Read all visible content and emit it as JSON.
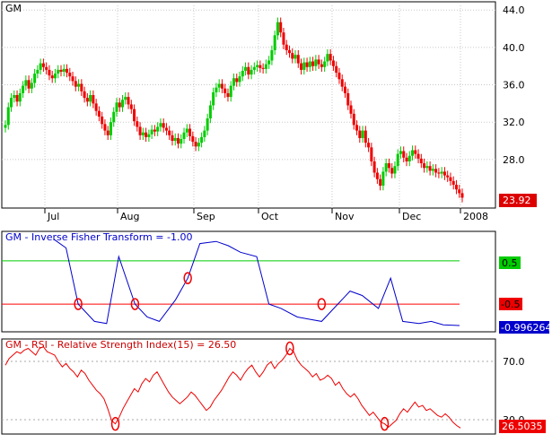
{
  "chart_data": [
    {
      "type": "candlestick",
      "title": "GM",
      "x_labels": [
        "Jul",
        "Aug",
        "Sep",
        "Oct",
        "Nov",
        "Dec",
        "2008"
      ],
      "y_ticks": [
        "44.0",
        "40.0",
        "36.0",
        "32.0",
        "28.0"
      ],
      "ylim": [
        23.0,
        44.5
      ],
      "last_value_label": "23.92",
      "last_value": 23.92,
      "grid": true,
      "close": [
        31.7,
        33.6,
        34.6,
        34.9,
        34.2,
        35.1,
        35.9,
        36.5,
        35.6,
        36.2,
        37.2,
        37.6,
        38.3,
        37.9,
        37.6,
        37.0,
        36.7,
        37.2,
        37.6,
        37.4,
        37.7,
        37.3,
        36.9,
        36.4,
        35.8,
        36.1,
        35.3,
        34.6,
        34.2,
        34.9,
        34.0,
        33.2,
        32.6,
        31.8,
        31.1,
        30.6,
        32.0,
        33.1,
        34.1,
        33.6,
        34.4,
        34.7,
        33.9,
        33.4,
        32.1,
        31.5,
        30.6,
        30.9,
        30.4,
        30.7,
        31.2,
        31.0,
        31.5,
        31.9,
        31.4,
        31.1,
        30.6,
        30.0,
        30.3,
        29.7,
        30.2,
        30.9,
        31.3,
        30.5,
        29.9,
        29.4,
        29.8,
        30.4,
        31.1,
        32.4,
        33.8,
        35.2,
        35.7,
        36.1,
        35.6,
        35.1,
        34.7,
        35.9,
        36.7,
        36.3,
        36.9,
        37.5,
        37.9,
        37.1,
        37.6,
        37.9,
        38.1,
        37.8,
        37.7,
        38.2,
        38.6,
        39.7,
        41.3,
        42.7,
        41.6,
        40.3,
        39.7,
        39.4,
        38.8,
        39.2,
        38.3,
        37.6,
        38.4,
        37.9,
        38.5,
        38.0,
        38.7,
        38.2,
        37.9,
        38.5,
        39.3,
        38.6,
        38.0,
        37.3,
        36.6,
        35.8,
        35.1,
        33.8,
        32.9,
        31.7,
        31.1,
        30.3,
        31.1,
        29.8,
        29.3,
        27.8,
        26.6,
        25.9,
        25.2,
        26.7,
        27.6,
        27.1,
        26.5,
        27.3,
        28.6,
        28.9,
        28.2,
        27.8,
        28.4,
        29.0,
        28.6,
        28.1,
        27.6,
        27.1,
        27.3,
        26.8,
        27.0,
        26.6,
        26.5,
        26.7,
        26.3,
        26.1,
        25.7,
        25.3,
        24.8,
        24.4,
        23.92
      ]
    },
    {
      "type": "line",
      "title": "GM - Inverse Fisher Transform = -1.00",
      "ylim": [
        -1.1,
        1.1
      ],
      "reference_lines": [
        {
          "value": 0.5,
          "label": "0.5",
          "color": "#00cc00"
        },
        {
          "value": -0.5,
          "label": "-0.5",
          "color": "#ff0000"
        }
      ],
      "last_value_label": "-0.996264",
      "last_value": -0.996264,
      "x": [
        0,
        0.03,
        0.06,
        0.1,
        0.13,
        0.16,
        0.2,
        0.23,
        0.26,
        0.3,
        0.33,
        0.36,
        0.4,
        0.43,
        0.46,
        0.5,
        0.53,
        0.56,
        0.6,
        0.63,
        0.66,
        0.7,
        0.73,
        0.76,
        0.8,
        0.83,
        0.86,
        0.9,
        0.93,
        0.96,
        1
      ],
      "values": [
        1,
        0.8,
        -0.5,
        -0.9,
        -0.95,
        0.6,
        -0.5,
        -0.8,
        -0.9,
        -0.4,
        0.1,
        0.9,
        0.95,
        0.85,
        0.7,
        0.6,
        -0.5,
        -0.6,
        -0.8,
        -0.85,
        -0.9,
        -0.5,
        -0.2,
        -0.3,
        -0.6,
        0.1,
        -0.9,
        -0.95,
        -0.9,
        -0.98,
        -0.996264
      ]
    },
    {
      "type": "line",
      "title": "GM - RSI - Relative Strength Index(15) = 26.50",
      "y_ticks": [
        "70.0",
        "30.0"
      ],
      "ylim": [
        24,
        78
      ],
      "last_value_label": "26.5035",
      "last_value": 26.5035,
      "values": [
        64,
        68,
        70,
        72,
        71,
        73,
        74,
        72,
        70,
        74,
        75,
        72,
        71,
        70,
        66,
        63,
        65,
        62,
        60,
        57,
        61,
        59,
        55,
        52,
        49,
        47,
        44,
        38,
        31,
        29,
        33,
        38,
        42,
        46,
        50,
        48,
        53,
        56,
        54,
        58,
        60,
        56,
        52,
        48,
        45,
        43,
        41,
        43,
        45,
        48,
        46,
        43,
        40,
        37,
        39,
        43,
        46,
        49,
        53,
        57,
        60,
        58,
        55,
        59,
        62,
        64,
        60,
        57,
        60,
        64,
        66,
        62,
        65,
        67,
        70,
        74,
        72,
        67,
        64,
        62,
        60,
        57,
        59,
        55,
        56,
        58,
        56,
        52,
        54,
        50,
        47,
        45,
        47,
        44,
        40,
        37,
        34,
        36,
        33,
        30,
        29,
        27,
        29,
        31,
        35,
        38,
        36,
        39,
        42,
        39,
        40,
        37,
        38,
        36,
        34,
        33,
        35,
        33,
        30,
        28,
        26.5
      ]
    }
  ],
  "indicator_panel": {
    "title": "GM - Inverse Fisher Transform = -1.00",
    "upper_label": "0.5",
    "lower_label": "-0.5",
    "last_value_label": "-0.996264"
  },
  "rsi_panel": {
    "title": "GM - RSI - Relative Strength Index(15) = 26.50",
    "tick_high": "70.0",
    "tick_low": "30.0",
    "last_value_label": "26.5035"
  },
  "colors": {
    "up": "#00cc00",
    "down": "#ee0000",
    "ift_line": "#0000cc",
    "rsi_line": "#ee0000",
    "marker": "#ee0000",
    "grid": "#c8c8c8"
  }
}
